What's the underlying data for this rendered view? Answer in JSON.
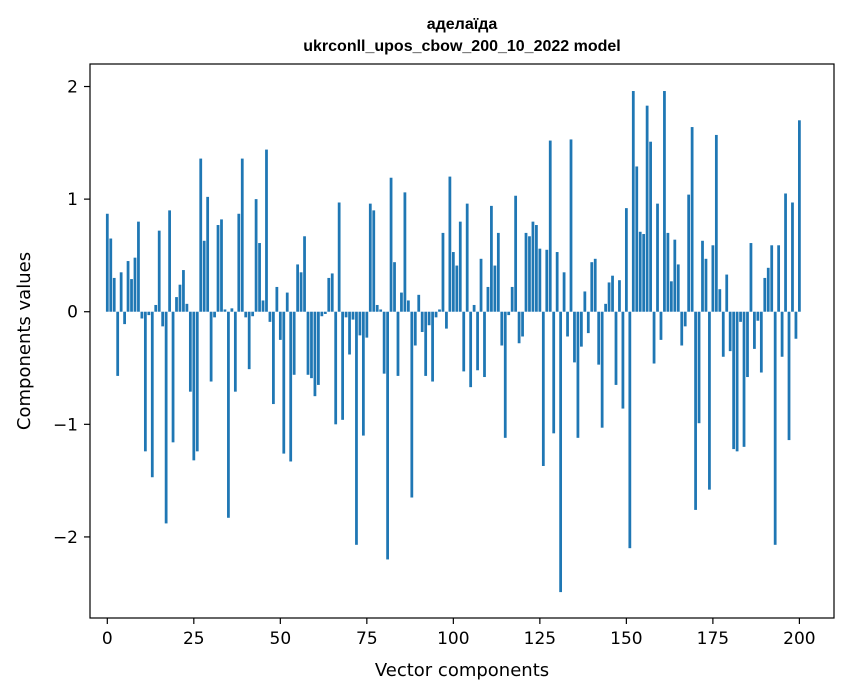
{
  "chart_data": {
    "type": "bar",
    "title": "аделаїда",
    "subtitle": "ukrconll_upos_cbow_200_10_2022 model",
    "xlabel": "Vector components",
    "ylabel": "Components values",
    "xlim": [
      -5,
      210
    ],
    "ylim": [
      -2.72,
      2.2
    ],
    "xticks": [
      0,
      25,
      50,
      75,
      100,
      125,
      150,
      175,
      200
    ],
    "yticks": [
      -2,
      -1,
      0,
      1,
      2
    ],
    "ytick_labels": [
      "−2",
      "−1",
      "0",
      "1",
      "2"
    ],
    "bar_color": "#1f77b4",
    "series": [
      {
        "name": "аделаїда",
        "x_start": 0,
        "values": [
          0.87,
          0.65,
          0.3,
          -0.57,
          0.35,
          -0.11,
          0.45,
          0.29,
          0.48,
          0.8,
          -0.06,
          -1.24,
          -0.03,
          -1.47,
          0.06,
          0.72,
          -0.13,
          -1.88,
          0.9,
          -1.16,
          0.13,
          0.24,
          0.37,
          0.07,
          -0.71,
          -1.32,
          -1.24,
          1.36,
          0.63,
          1.02,
          -0.62,
          -0.05,
          0.77,
          0.82,
          0.02,
          -1.83,
          0.03,
          -0.71,
          0.87,
          1.36,
          -0.05,
          -0.51,
          -0.04,
          1.0,
          0.61,
          0.1,
          1.44,
          -0.09,
          -0.82,
          0.22,
          -0.25,
          -1.26,
          0.17,
          -1.33,
          -0.56,
          0.42,
          0.35,
          0.67,
          -0.56,
          -0.59,
          -0.75,
          -0.65,
          -0.04,
          -0.02,
          0.3,
          0.34,
          -1.0,
          0.97,
          -0.96,
          -0.05,
          -0.38,
          -0.07,
          -2.07,
          -0.21,
          -1.1,
          -0.23,
          0.96,
          0.9,
          0.06,
          0.02,
          -0.55,
          -2.2,
          1.19,
          0.44,
          -0.57,
          0.17,
          1.06,
          0.1,
          -1.65,
          -0.3,
          0.15,
          -0.18,
          -0.57,
          -0.12,
          -0.62,
          -0.05,
          0.02,
          0.7,
          -0.15,
          1.2,
          0.53,
          0.41,
          0.8,
          -0.53,
          0.96,
          -0.67,
          0.06,
          -0.52,
          0.47,
          -0.58,
          0.22,
          0.94,
          0.41,
          0.7,
          -0.3,
          -1.12,
          -0.03,
          0.22,
          1.03,
          -0.28,
          -0.22,
          0.7,
          0.67,
          0.8,
          0.77,
          0.56,
          -1.37,
          0.55,
          1.52,
          -1.08,
          0.53,
          -2.49,
          0.35,
          -0.22,
          1.53,
          -0.45,
          -1.12,
          -0.31,
          0.18,
          -0.19,
          0.44,
          0.47,
          -0.47,
          -1.03,
          0.07,
          0.26,
          0.32,
          -0.65,
          0.28,
          -0.86,
          0.92,
          -2.1,
          1.96,
          1.29,
          0.71,
          0.69,
          1.83,
          1.51,
          -0.46,
          0.96,
          -0.25,
          1.96,
          0.7,
          0.27,
          0.64,
          0.42,
          -0.3,
          -0.13,
          1.04,
          1.64,
          -1.76,
          -0.99,
          0.63,
          0.47,
          -1.58,
          0.59,
          1.57,
          0.2,
          -0.4,
          0.33,
          -0.35,
          -1.22,
          -1.24,
          -0.09,
          -1.2,
          -0.58,
          0.61,
          -0.33,
          -0.08,
          -0.54,
          0.3,
          0.39,
          0.59,
          -2.07,
          0.59,
          -0.4,
          1.05,
          -1.14,
          0.97,
          -0.24,
          1.7
        ]
      }
    ]
  }
}
